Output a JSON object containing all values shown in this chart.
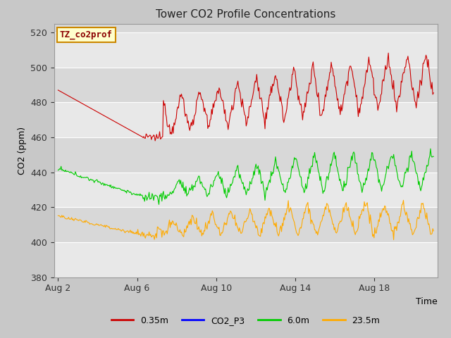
{
  "title": "Tower CO2 Profile Concentrations",
  "xlabel": "Time",
  "ylabel": "CO2 (ppm)",
  "ylim": [
    380,
    525
  ],
  "yticks": [
    380,
    400,
    420,
    440,
    460,
    480,
    500,
    520
  ],
  "xtick_labels": [
    "Aug 2",
    "Aug 6",
    "Aug 10",
    "Aug 14",
    "Aug 18"
  ],
  "xtick_positions": [
    0,
    4,
    8,
    12,
    16
  ],
  "watermark_text": "TZ_co2prof",
  "fig_bg": "#c8c8c8",
  "plot_bg_light": "#e8e8e8",
  "plot_bg_dark": "#d8d8d8",
  "line_colors": {
    "035m": "#cc0000",
    "co2p3": "#0000ff",
    "60m": "#00cc00",
    "235m": "#ffaa00"
  },
  "legend_labels": [
    "0.35m",
    "CO2_P3",
    "6.0m",
    "23.5m"
  ],
  "legend_colors": [
    "#cc0000",
    "#0000ff",
    "#00cc00",
    "#ffaa00"
  ]
}
